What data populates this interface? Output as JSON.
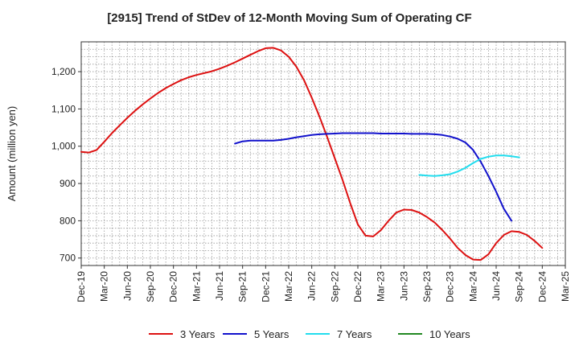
{
  "chart_data": {
    "type": "line",
    "title": "[2915]  Trend of StDev of 12-Month Moving Sum of Operating CF",
    "xlabel": "",
    "ylabel": "Amount (million yen)",
    "ylim": [
      680,
      1280
    ],
    "yticks": [
      700,
      800,
      900,
      1000,
      1100,
      1200
    ],
    "ytick_labels": [
      "700",
      "800",
      "900",
      "1,000",
      "1,100",
      "1,200"
    ],
    "x_start": "2019-12",
    "x_end": "2025-03",
    "xtick_labels": [
      "Dec-19",
      "Mar-20",
      "Jun-20",
      "Sep-20",
      "Dec-20",
      "Mar-21",
      "Jun-21",
      "Sep-21",
      "Dec-21",
      "Mar-22",
      "Jun-22",
      "Sep-22",
      "Dec-22",
      "Mar-23",
      "Jun-23",
      "Sep-23",
      "Dec-23",
      "Mar-24",
      "Jun-24",
      "Sep-24",
      "Dec-24",
      "Mar-25"
    ],
    "grid": true,
    "legend_position": "bottom",
    "series": [
      {
        "name": "3 Years",
        "color": "#dd1111",
        "start": "2019-12",
        "values": [
          985,
          983,
          990,
          1012,
          1035,
          1056,
          1076,
          1095,
          1112,
          1128,
          1143,
          1156,
          1167,
          1177,
          1185,
          1191,
          1196,
          1201,
          1208,
          1216,
          1225,
          1235,
          1245,
          1255,
          1263,
          1264,
          1257,
          1240,
          1213,
          1177,
          1130,
          1080,
          1025,
          968,
          910,
          848,
          790,
          760,
          758,
          775,
          800,
          822,
          830,
          829,
          822,
          810,
          795,
          775,
          752,
          727,
          708,
          696,
          695,
          710,
          740,
          762,
          772,
          770,
          762,
          746,
          727
        ]
      },
      {
        "name": "5 Years",
        "color": "#1111cc",
        "start": "2021-08",
        "values": [
          1007,
          1013,
          1015,
          1015,
          1015,
          1015,
          1017,
          1020,
          1024,
          1027,
          1030,
          1032,
          1033,
          1034,
          1035,
          1035,
          1035,
          1035,
          1035,
          1034,
          1034,
          1034,
          1034,
          1033,
          1033,
          1033,
          1032,
          1030,
          1026,
          1020,
          1010,
          990,
          958,
          920,
          878,
          832,
          800
        ]
      },
      {
        "name": "7 Years",
        "color": "#22ddee",
        "start": "2023-08",
        "values": [
          923,
          921,
          920,
          922,
          925,
          932,
          942,
          955,
          966,
          972,
          975,
          975,
          973,
          970
        ]
      },
      {
        "name": "10 Years",
        "color": "#228822",
        "start": "2023-08",
        "values": []
      }
    ]
  }
}
